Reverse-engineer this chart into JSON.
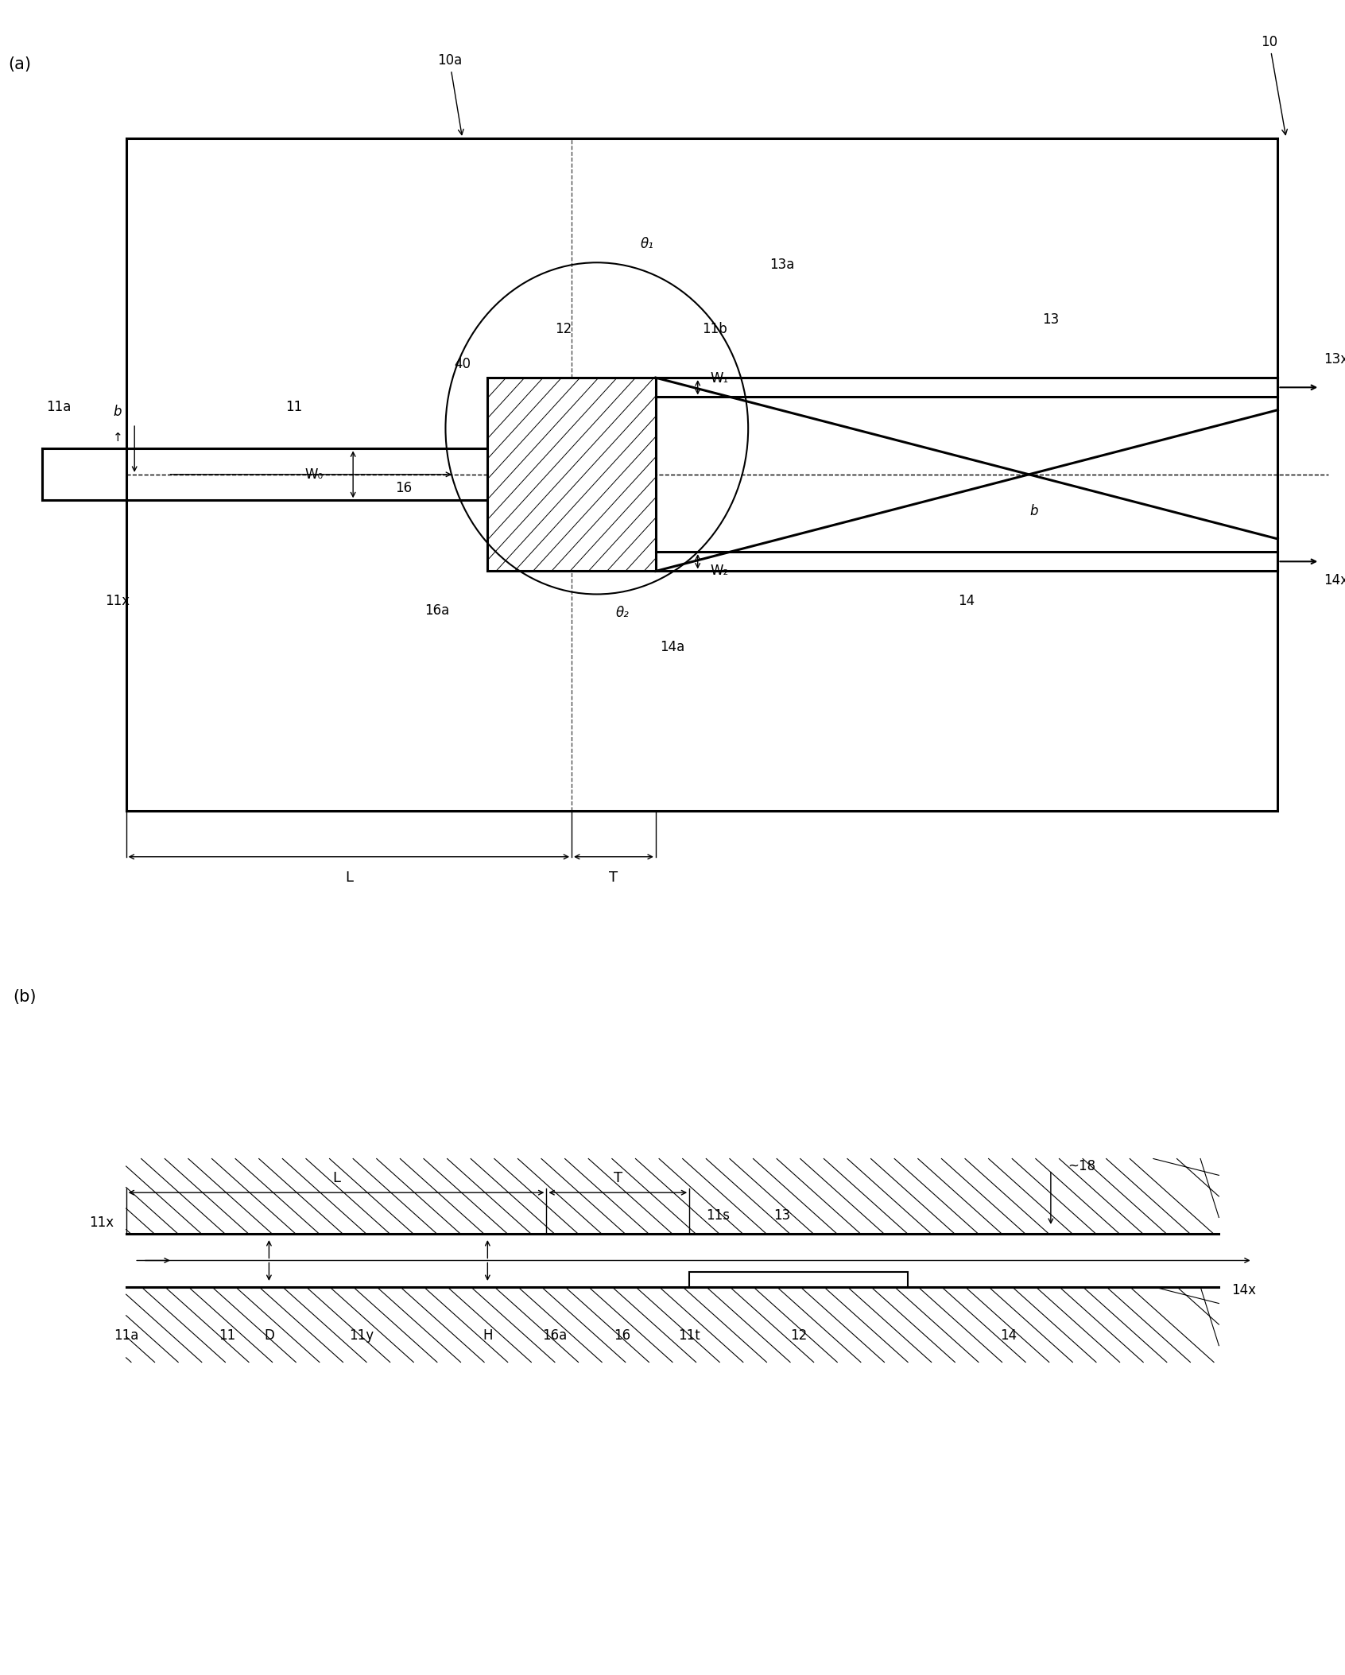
{
  "bg_color": "#ffffff",
  "fig_width": 16.92,
  "fig_height": 21.07,
  "panel_a_label": "(a)",
  "panel_b_label": "(b)",
  "label_10": "10",
  "label_10a": "10a",
  "label_11": "11",
  "label_11a": "11a",
  "label_11b": "11b",
  "label_11s": "11s",
  "label_11t": "11t",
  "label_11x": "11x",
  "label_11y": "11y",
  "label_12": "12",
  "label_13": "13",
  "label_13a": "13a",
  "label_13x": "13x",
  "label_14": "14",
  "label_14a": "14a",
  "label_14x": "14x",
  "label_16": "16",
  "label_16a": "16a",
  "label_18": "18",
  "label_40": "40",
  "label_b": "b",
  "label_D": "D",
  "label_H": "H",
  "label_L": "L",
  "label_T": "T",
  "label_W0": "W₀",
  "label_W1": "W₁",
  "label_W2": "W₂",
  "label_theta1": "θ₁",
  "label_theta2": "θ₂"
}
